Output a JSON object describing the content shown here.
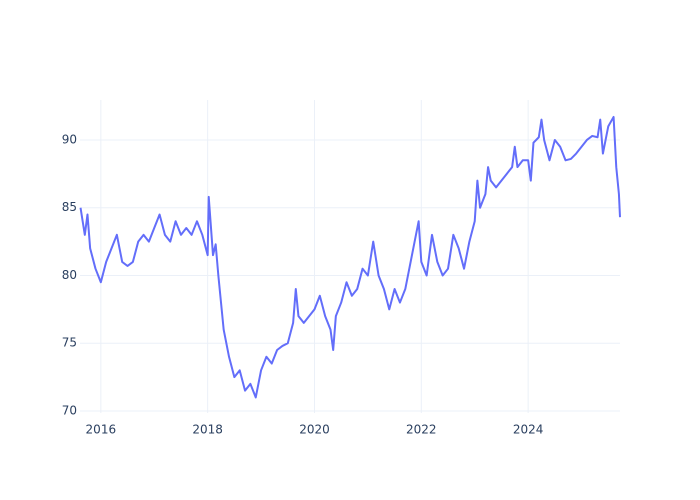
{
  "chart_data": {
    "type": "line",
    "x": [
      2015.62,
      2015.7,
      2015.75,
      2015.8,
      2015.9,
      2016.0,
      2016.1,
      2016.2,
      2016.3,
      2016.4,
      2016.5,
      2016.6,
      2016.7,
      2016.8,
      2016.9,
      2017.0,
      2017.1,
      2017.2,
      2017.3,
      2017.4,
      2017.5,
      2017.6,
      2017.7,
      2017.8,
      2017.9,
      2018.0,
      2018.02,
      2018.1,
      2018.15,
      2018.2,
      2018.25,
      2018.3,
      2018.4,
      2018.5,
      2018.6,
      2018.7,
      2018.8,
      2018.9,
      2019.0,
      2019.1,
      2019.2,
      2019.3,
      2019.4,
      2019.5,
      2019.6,
      2019.65,
      2019.7,
      2019.8,
      2019.9,
      2020.0,
      2020.1,
      2020.2,
      2020.3,
      2020.35,
      2020.4,
      2020.5,
      2020.6,
      2020.7,
      2020.8,
      2020.9,
      2021.0,
      2021.1,
      2021.2,
      2021.3,
      2021.4,
      2021.5,
      2021.6,
      2021.7,
      2021.8,
      2021.9,
      2021.95,
      2022.0,
      2022.1,
      2022.2,
      2022.3,
      2022.4,
      2022.5,
      2022.6,
      2022.7,
      2022.8,
      2022.9,
      2023.0,
      2023.05,
      2023.1,
      2023.2,
      2023.25,
      2023.3,
      2023.4,
      2023.5,
      2023.6,
      2023.7,
      2023.75,
      2023.8,
      2023.9,
      2024.0,
      2024.05,
      2024.1,
      2024.2,
      2024.25,
      2024.3,
      2024.4,
      2024.5,
      2024.6,
      2024.7,
      2024.8,
      2024.9,
      2025.0,
      2025.1,
      2025.2,
      2025.3,
      2025.35,
      2025.4,
      2025.5,
      2025.6,
      2025.65,
      2025.7,
      2025.72
    ],
    "series": [
      {
        "color": "#636efa",
        "values": [
          85,
          83,
          84.5,
          82,
          80.5,
          79.5,
          81,
          82,
          83,
          81,
          80.7,
          81,
          82.5,
          83,
          82.5,
          83.5,
          84.5,
          83,
          82.5,
          84,
          83,
          83.5,
          83,
          84,
          83,
          81.5,
          85.8,
          81.5,
          82.3,
          80,
          78,
          76,
          74,
          72.5,
          73,
          71.5,
          72,
          71,
          73,
          74,
          73.5,
          74.5,
          74.8,
          75,
          76.5,
          79,
          77,
          76.5,
          77,
          77.5,
          78.5,
          77,
          76,
          74.5,
          77,
          78,
          79.5,
          78.5,
          79,
          80.5,
          80,
          82.5,
          80,
          79,
          77.5,
          79,
          78,
          79,
          81,
          83,
          84,
          81,
          80,
          83,
          81,
          80,
          80.5,
          83,
          82,
          80.5,
          82.5,
          84,
          87,
          85,
          86,
          88,
          87,
          86.5,
          87,
          87.5,
          88,
          89.5,
          88,
          88.5,
          88.5,
          87,
          89.8,
          90.2,
          91.5,
          90,
          88.5,
          90,
          89.5,
          88.5,
          88.6,
          89,
          89.5,
          90,
          90.3,
          90.2,
          91.5,
          89,
          91,
          91.7,
          88,
          86,
          84.3
        ]
      }
    ],
    "xlim": [
      2015.61,
      2025.72
    ],
    "xticks": [
      2016,
      2018,
      2020,
      2022,
      2024
    ],
    "ylim": [
      69.85,
      92.95
    ],
    "yticks": [
      70,
      75,
      80,
      85,
      90
    ],
    "grid": true
  }
}
